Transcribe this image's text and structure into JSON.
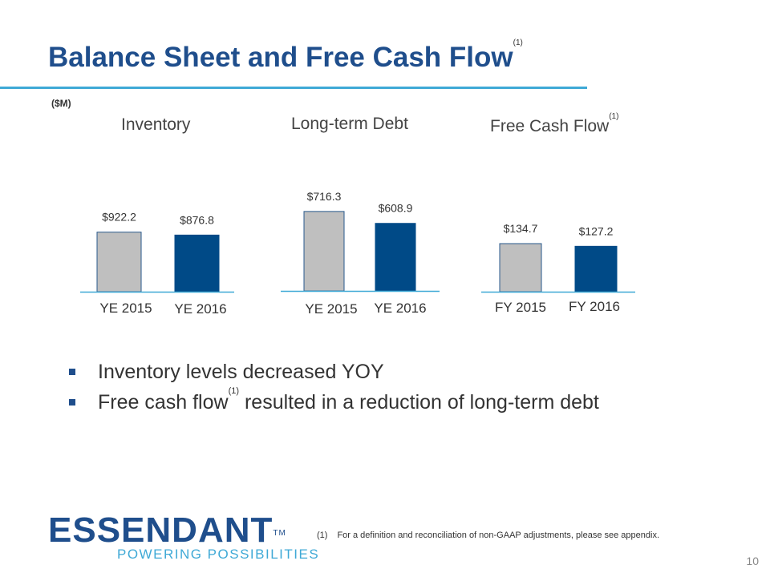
{
  "slide": {
    "title": "Balance Sheet and Free Cash Flow",
    "title_note": "(1)",
    "units": "($M)",
    "page_number": "10"
  },
  "bullets": [
    {
      "text": "Inventory levels decreased YOY",
      "note": ""
    },
    {
      "text_before": "Free cash flow",
      "note": "(1)",
      "text_after": " resulted in a reduction of long-term debt"
    }
  ],
  "footnote": {
    "number": "(1)",
    "text": "For a definition and reconciliation of non-GAAP adjustments, please see appendix."
  },
  "logo": {
    "wordmark": "ESSENDANT",
    "trademark": "TM",
    "tagline": "POWERING POSSIBILITIES"
  },
  "colors": {
    "title": "#1f4e8c",
    "accent_rule": "#3fa9d6",
    "bar_prior": "#bfbfbf",
    "bar_current": "#004a87"
  },
  "chart_data": [
    {
      "type": "bar",
      "title": "Inventory",
      "title_note": "",
      "categories": [
        "YE 2015",
        "YE 2016"
      ],
      "values": [
        922.2,
        876.8
      ],
      "value_labels": [
        "$922.2",
        "$876.8"
      ]
    },
    {
      "type": "bar",
      "title": "Long-term Debt",
      "title_note": "",
      "categories": [
        "YE 2015",
        "YE 2016"
      ],
      "values": [
        716.3,
        608.9
      ],
      "value_labels": [
        "$716.3",
        "$608.9"
      ]
    },
    {
      "type": "bar",
      "title": "Free Cash Flow",
      "title_note": "(1)",
      "categories": [
        "FY 2015",
        "FY 2016"
      ],
      "values": [
        134.7,
        127.2
      ],
      "value_labels": [
        "$134.7",
        "$127.2"
      ]
    }
  ]
}
